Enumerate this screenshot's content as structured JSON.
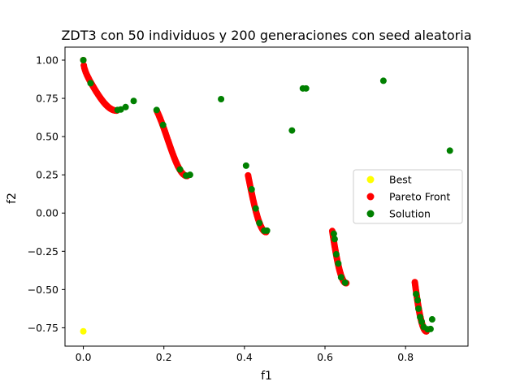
{
  "chart_data": {
    "type": "scatter",
    "title": "ZDT3 con 50 individuos y 200 generaciones con seed aleatoria",
    "xlabel": "f1",
    "ylabel": "f2",
    "xlim": [
      -0.0455,
      0.955
    ],
    "ylim": [
      -0.87,
      1.085
    ],
    "xticks": [
      {
        "value": 0.0,
        "label": "0.0"
      },
      {
        "value": 0.2,
        "label": "0.2"
      },
      {
        "value": 0.4,
        "label": "0.4"
      },
      {
        "value": 0.6,
        "label": "0.6"
      },
      {
        "value": 0.8,
        "label": "0.8"
      }
    ],
    "yticks": [
      {
        "value": -0.75,
        "label": "−0.75"
      },
      {
        "value": -0.5,
        "label": "−0.50"
      },
      {
        "value": -0.25,
        "label": "−0.25"
      },
      {
        "value": 0.0,
        "label": "0.00"
      },
      {
        "value": 0.25,
        "label": "0.25"
      },
      {
        "value": 0.5,
        "label": "0.50"
      },
      {
        "value": 0.75,
        "label": "0.75"
      },
      {
        "value": 1.0,
        "label": "1.00"
      }
    ],
    "grid": false,
    "legend_position": "center-right",
    "series": [
      {
        "name": "Best",
        "color": "#ffff00",
        "points": [
          [
            0.0,
            -0.773
          ]
        ]
      },
      {
        "name": "Pareto Front",
        "color": "#ff0000",
        "segments": [
          [
            0.0,
            0.083
          ],
          [
            0.182,
            0.258
          ],
          [
            0.409,
            0.454
          ],
          [
            0.618,
            0.653
          ],
          [
            0.823,
            0.852
          ]
        ]
      },
      {
        "name": "Solution",
        "color": "#008000",
        "points": [
          [
            0.0,
            1.0
          ],
          [
            0.018,
            0.849
          ],
          [
            0.085,
            0.674
          ],
          [
            0.093,
            0.677
          ],
          [
            0.105,
            0.693
          ],
          [
            0.125,
            0.733
          ],
          [
            0.182,
            0.674
          ],
          [
            0.198,
            0.576
          ],
          [
            0.24,
            0.285
          ],
          [
            0.255,
            0.245
          ],
          [
            0.265,
            0.25
          ],
          [
            0.342,
            0.745
          ],
          [
            0.404,
            0.31
          ],
          [
            0.418,
            0.155
          ],
          [
            0.428,
            0.03
          ],
          [
            0.437,
            -0.065
          ],
          [
            0.449,
            -0.115
          ],
          [
            0.456,
            -0.115
          ],
          [
            0.518,
            0.54
          ],
          [
            0.545,
            0.815
          ],
          [
            0.553,
            0.815
          ],
          [
            0.622,
            -0.135
          ],
          [
            0.624,
            -0.17
          ],
          [
            0.628,
            -0.27
          ],
          [
            0.633,
            -0.33
          ],
          [
            0.64,
            -0.42
          ],
          [
            0.65,
            -0.455
          ],
          [
            0.745,
            0.865
          ],
          [
            0.826,
            -0.53
          ],
          [
            0.83,
            -0.57
          ],
          [
            0.832,
            -0.625
          ],
          [
            0.836,
            -0.68
          ],
          [
            0.84,
            -0.71
          ],
          [
            0.845,
            -0.745
          ],
          [
            0.855,
            -0.76
          ],
          [
            0.862,
            -0.758
          ],
          [
            0.866,
            -0.695
          ],
          [
            0.91,
            0.408
          ]
        ]
      }
    ]
  }
}
